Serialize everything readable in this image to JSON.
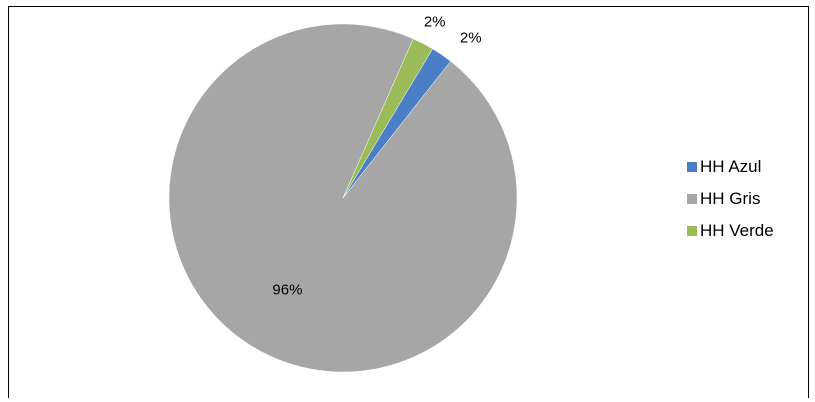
{
  "chart_data": {
    "type": "pie",
    "title": "",
    "slices": [
      {
        "label": "HH Azul",
        "value": 2,
        "display": "2%",
        "color": "#4a7ec6"
      },
      {
        "label": "HH Gris",
        "value": 96,
        "display": "96%",
        "color": "#a6a6a6"
      },
      {
        "label": "HH Verde",
        "value": 2,
        "display": "2%",
        "color": "#9bbb59"
      }
    ],
    "start_angle_deg": 31,
    "direction": "clockwise",
    "legend_position": "right"
  }
}
